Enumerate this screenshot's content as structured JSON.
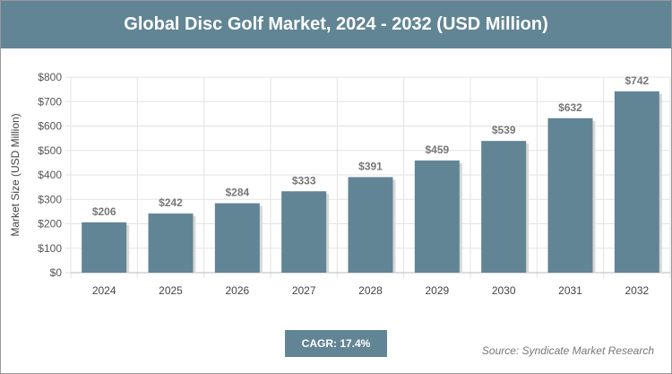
{
  "chart_data": {
    "type": "bar",
    "title": "Global Disc Golf Market, 2024 - 2032 (USD Million)",
    "xlabel": "",
    "ylabel": "Market Size (USD Million)",
    "categories": [
      "2024",
      "2025",
      "2026",
      "2027",
      "2028",
      "2029",
      "2030",
      "2031",
      "2032"
    ],
    "values": [
      206,
      242,
      284,
      333,
      391,
      459,
      539,
      632,
      742
    ],
    "data_labels": [
      "$206",
      "$242",
      "$284",
      "$333",
      "$391",
      "$459",
      "$539",
      "$632",
      "$742"
    ],
    "ylim": [
      0,
      800
    ],
    "yticks": [
      "$0",
      "$100",
      "$200",
      "$300",
      "$400",
      "$500",
      "$600",
      "$700",
      "$800"
    ],
    "grid": true,
    "bar_color": "#628595"
  },
  "cagr": "CAGR: 17.4%",
  "source": "Source: Syndicate Market Research"
}
